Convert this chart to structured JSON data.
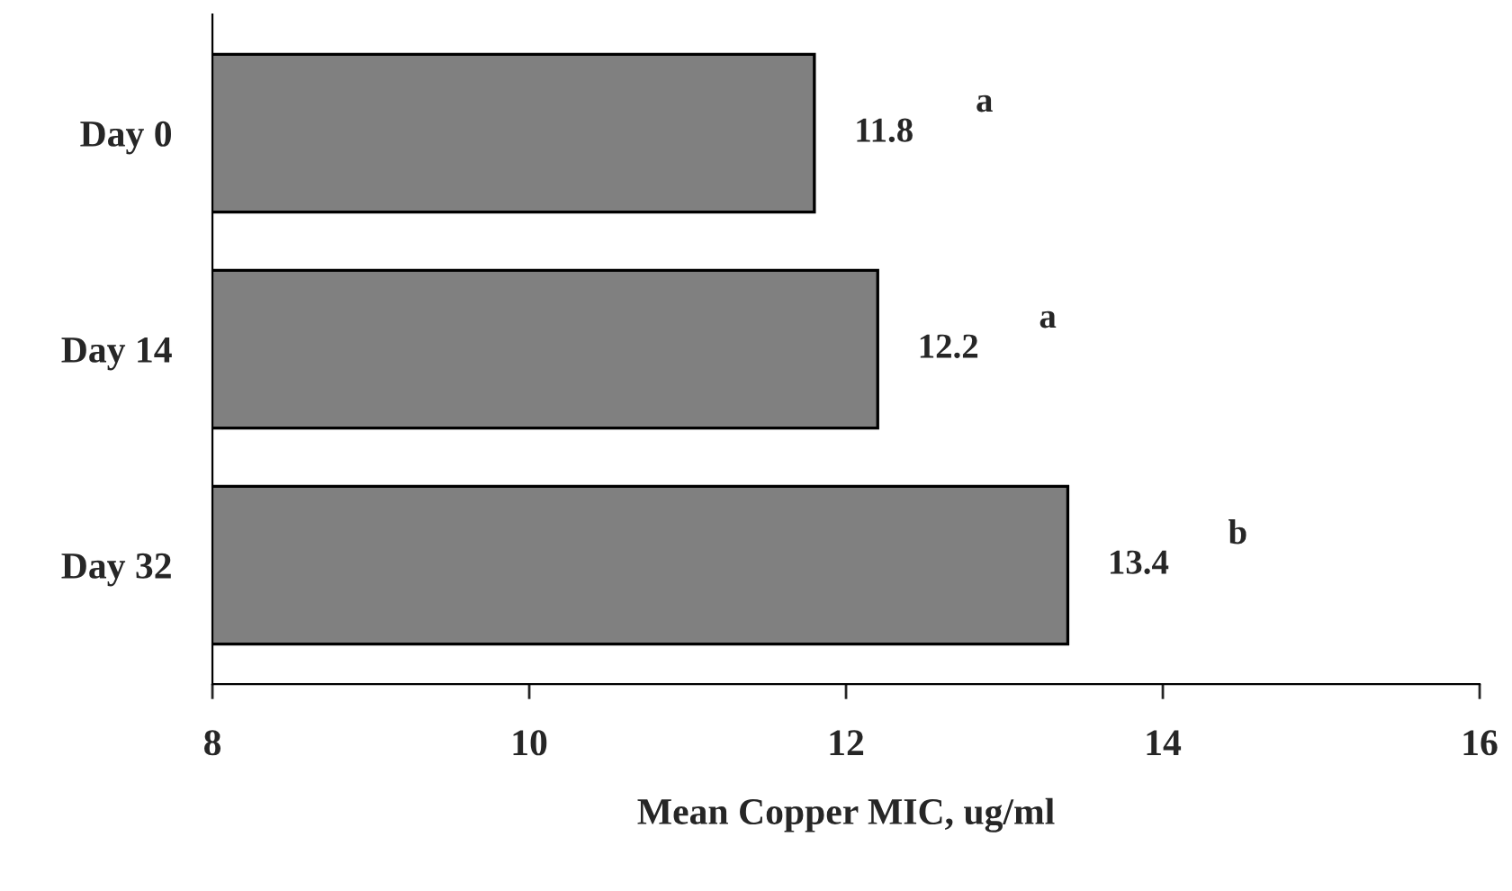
{
  "chart_data": {
    "type": "bar",
    "orientation": "horizontal",
    "xlabel": "Mean Copper MIC, ug/ml",
    "categories": [
      "Day 0",
      "Day 14",
      "Day 32"
    ],
    "values": [
      11.8,
      12.2,
      13.4
    ],
    "color": "#808080",
    "xlim": [
      8,
      16
    ],
    "xticks": [
      8,
      10,
      12,
      14,
      16
    ],
    "data_labels": true,
    "grid": false,
    "legend": false,
    "annotations": [
      "a",
      "a",
      "b"
    ]
  }
}
